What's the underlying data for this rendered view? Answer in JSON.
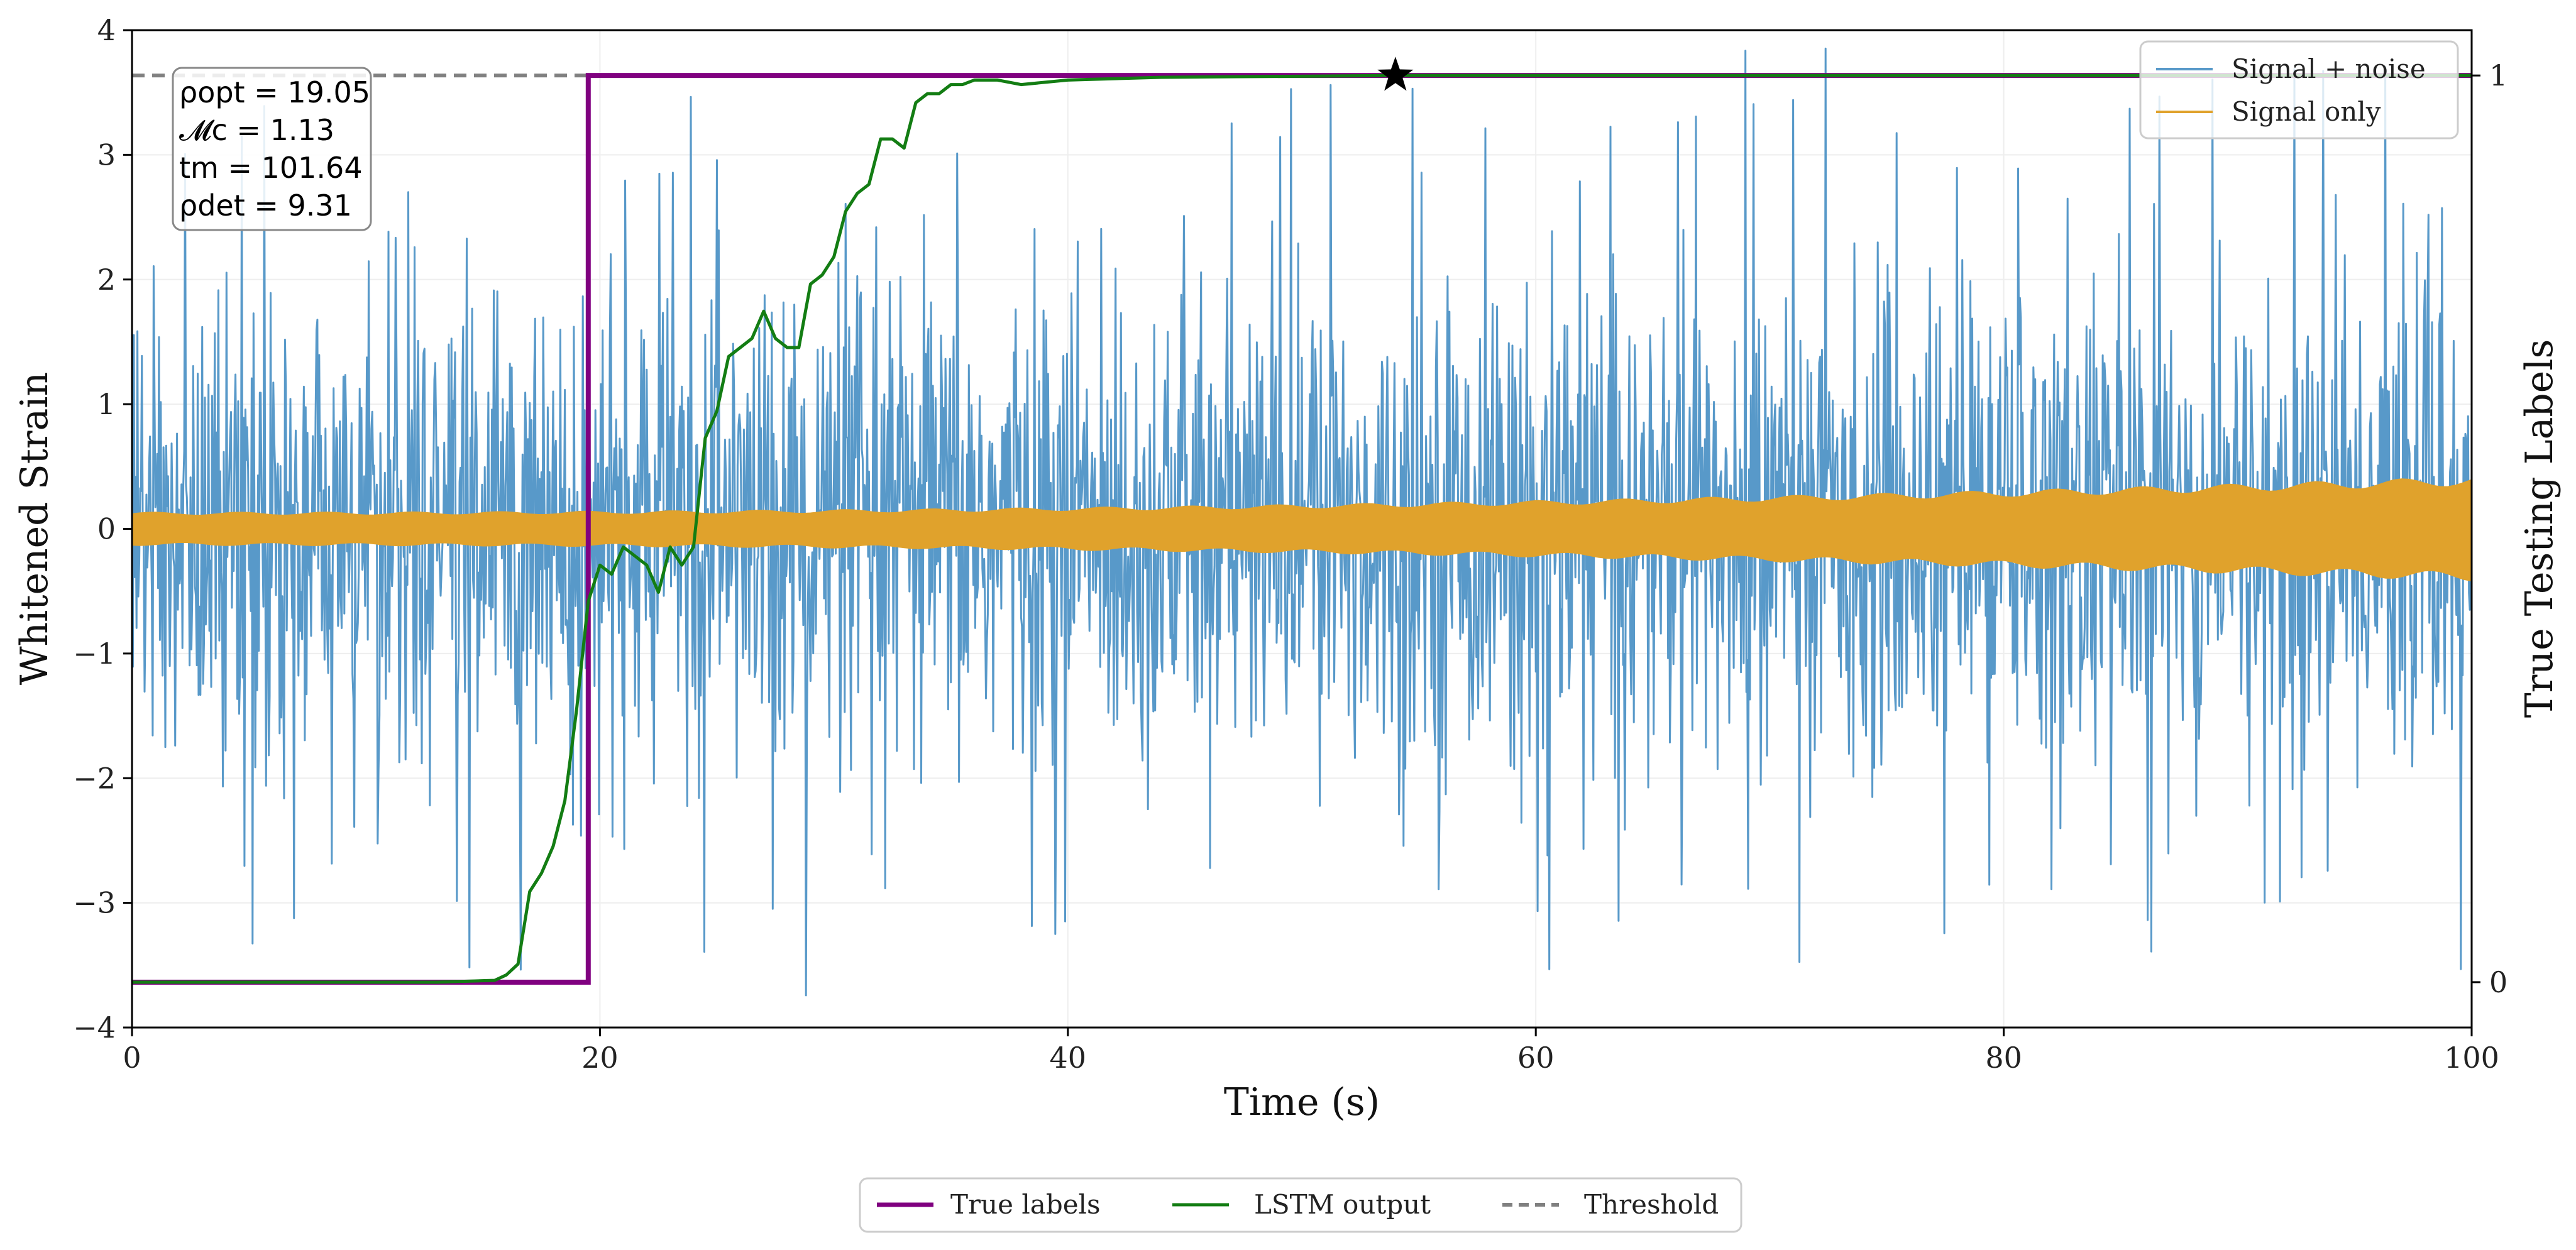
{
  "chart_data": {
    "type": "line",
    "title": "",
    "xlabel": "Time (s)",
    "ylabel": "Whitened Strain",
    "y2label": "True Testing Labels",
    "xlim": [
      0,
      100
    ],
    "ylim": [
      -4,
      4
    ],
    "y2lim": [
      -0.05,
      1.05
    ],
    "x_ticks": [
      "0",
      "20",
      "40",
      "60",
      "80",
      "100"
    ],
    "y_ticks": [
      "−4",
      "−3",
      "−2",
      "−1",
      "0",
      "1",
      "2",
      "3",
      "4"
    ],
    "y2_ticks": [
      "0",
      "1"
    ],
    "grid": true,
    "series": [
      {
        "name": "Signal + noise",
        "color": "#5899c9",
        "kind": "noise-band",
        "typical_amplitude": 1.6,
        "peak_amplitude": 4.0
      },
      {
        "name": "Signal only",
        "color": "#e0a22c",
        "kind": "chirp",
        "amplitude_start": 0.12,
        "amplitude_end": 0.38
      },
      {
        "name": "True labels",
        "color": "#800080",
        "axis": "y2",
        "x": [
          0,
          19.5,
          19.5,
          100
        ],
        "y": [
          0,
          0,
          1,
          1
        ]
      },
      {
        "name": "LSTM output",
        "color": "#137d13",
        "axis": "y2",
        "x": [
          0,
          13,
          15.5,
          16,
          16.5,
          17,
          17.5,
          18,
          18.5,
          19,
          19.5,
          20,
          20.5,
          21,
          21.5,
          22,
          22.5,
          23,
          23.5,
          24,
          24.5,
          25,
          25.5,
          26,
          26.5,
          27,
          27.5,
          28,
          28.5,
          29,
          29.5,
          30,
          30.5,
          31,
          31.5,
          32,
          32.5,
          33,
          33.5,
          34,
          34.5,
          35,
          35.5,
          36,
          37,
          38,
          40,
          44,
          54,
          100
        ],
        "y": [
          0,
          0,
          0.002,
          0.008,
          0.02,
          0.1,
          0.12,
          0.15,
          0.2,
          0.3,
          0.42,
          0.46,
          0.45,
          0.48,
          0.47,
          0.46,
          0.43,
          0.48,
          0.46,
          0.48,
          0.6,
          0.63,
          0.69,
          0.7,
          0.71,
          0.74,
          0.71,
          0.7,
          0.7,
          0.77,
          0.78,
          0.8,
          0.85,
          0.87,
          0.88,
          0.93,
          0.93,
          0.92,
          0.97,
          0.98,
          0.98,
          0.99,
          0.99,
          0.995,
          0.995,
          0.99,
          0.995,
          0.998,
          1.0,
          1.0
        ]
      },
      {
        "name": "Threshold",
        "color": "#808080",
        "axis": "y2",
        "style": "dashed",
        "value": 1.0
      }
    ],
    "marker": {
      "symbol": "star",
      "x": 54,
      "y2": 1.0,
      "color": "#000000"
    },
    "annotation_lines": [
      "ρopt = 19.05",
      "𝓜c = 1.13",
      "tm = 101.64",
      "ρdet = 9.31"
    ],
    "legend_upper": {
      "position": "top-right",
      "items": [
        "Signal + noise",
        "Signal only"
      ]
    },
    "legend_lower": {
      "position": "bottom-center-outside",
      "items": [
        "True labels",
        "LSTM output",
        "Threshold"
      ]
    }
  }
}
